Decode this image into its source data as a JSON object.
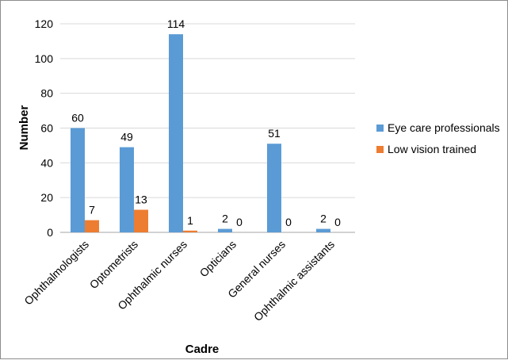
{
  "chart_data": {
    "type": "bar",
    "title": "",
    "xlabel": "Cadre",
    "ylabel": "Number",
    "ylim": [
      0,
      120
    ],
    "yticks": [
      0,
      20,
      40,
      60,
      80,
      100,
      120
    ],
    "grid": true,
    "legend_position": "right",
    "categories": [
      "Ophthalmologists",
      "Optometrists",
      "Ophthalmic nurses",
      "Opticians",
      "General nurses",
      "Ophthalmic assistants"
    ],
    "series": [
      {
        "name": "Eye care professionals",
        "color": "#5b9bd5",
        "values": [
          60,
          49,
          114,
          2,
          51,
          2
        ],
        "labels": [
          "60",
          "49",
          "114",
          "2",
          "51",
          "2"
        ]
      },
      {
        "name": "Low vision trained",
        "color": "#ed7d31",
        "values": [
          7,
          13,
          1,
          0,
          0,
          0
        ],
        "labels": [
          "7",
          "13",
          "1",
          "0",
          "0",
          "0"
        ]
      }
    ]
  }
}
